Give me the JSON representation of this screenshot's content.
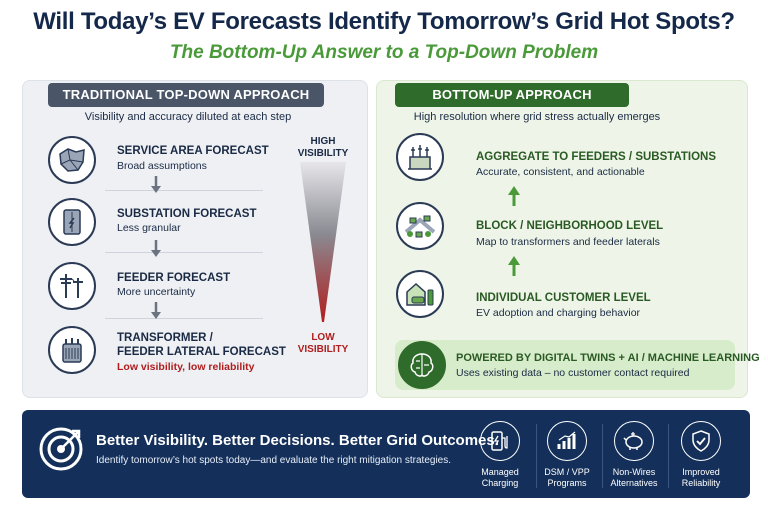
{
  "header": {
    "title": "Will Today’s EV Forecasts Identify Tomorrow’s Grid Hot Spots?",
    "subtitle": "The Bottom-Up Answer to a Top-Down Problem"
  },
  "left_panel": {
    "heading": "TRADITIONAL TOP-DOWN APPROACH",
    "subheading": "Visibility and accuracy diluted at each step",
    "items": [
      {
        "title": "SERVICE AREA FORECAST",
        "desc": "Broad assumptions",
        "icon": "map-region-icon"
      },
      {
        "title": "SUBSTATION FORECAST",
        "desc": "Less granular",
        "icon": "electrical-cabinet-icon"
      },
      {
        "title": "FEEDER FORECAST",
        "desc": "More uncertainty",
        "icon": "power-pole-icon"
      },
      {
        "title_line1": "TRANSFORMER /",
        "title_line2": "FEEDER LATERAL FORECAST",
        "desc": "Low visibility, low reliability",
        "icon": "transformer-icon"
      }
    ],
    "visibility_high": [
      "HIGH",
      "VISIBILITY"
    ],
    "visibility_low": [
      "LOW",
      "VISIBILITY"
    ]
  },
  "right_panel": {
    "heading": "BOTTOM-UP APPROACH",
    "subheading": "High resolution where grid stress actually emerges",
    "items": [
      {
        "title": "AGGREGATE TO FEEDERS / SUBSTATIONS",
        "desc": "Accurate, consistent, and actionable",
        "icon": "substation-icon"
      },
      {
        "title": "BLOCK / NEIGHBORHOOD LEVEL",
        "desc": "Map to transformers and feeder laterals",
        "icon": "neighborhood-icon"
      },
      {
        "title": "INDIVIDUAL CUSTOMER LEVEL",
        "desc": "EV adoption and charging behavior",
        "icon": "house-ev-icon"
      }
    ],
    "ai_box": {
      "title": "POWERED BY DIGITAL TWINS + AI / MACHINE LEARNING",
      "desc": "Uses existing data – no customer contact required",
      "icon": "brain-circuit-icon"
    }
  },
  "banner": {
    "title": "Better Visibility. Better Decisions. Better Grid Outcomes.",
    "desc": "Identify tomorrow’s hot spots today—and evaluate the right mitigation strategies.",
    "icon": "target-icon",
    "solutions": [
      {
        "line1": "Managed",
        "line2": "Charging",
        "icon": "ev-charger-icon"
      },
      {
        "line1": "DSM / VPP",
        "line2": "Programs",
        "icon": "bar-chart-icon"
      },
      {
        "line1": "Non-Wires",
        "line2": "Alternatives",
        "icon": "piggy-bank-icon"
      },
      {
        "line1": "Improved",
        "line2": "Reliability",
        "icon": "shield-check-icon"
      }
    ]
  },
  "colors": {
    "navy": "#14284a",
    "green_subtitle": "#4a9a3a",
    "green_dark": "#2f6b2a",
    "gray_header": "#4a5568",
    "red": "#b01e1e",
    "banner_bg": "#14305a"
  }
}
